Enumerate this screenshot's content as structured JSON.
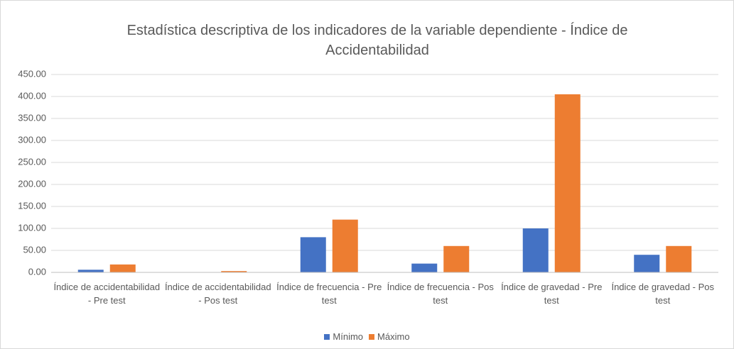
{
  "chart_data": {
    "type": "bar",
    "title": "Estadística descriptiva de los indicadores de la variable dependiente - Índice de Accidentabilidad",
    "categories": [
      "Índice de accidentabilidad - Pre test",
      "Índice de accidentabilidad - Pos test",
      "Índice de frecuencia - Pre test",
      "Índice de frecuencia - Pos test",
      "Índice de gravedad - Pre test",
      "Índice de gravedad - Pos test"
    ],
    "series": [
      {
        "name": "Mínimo",
        "color": "#4472c4",
        "values": [
          6,
          0.5,
          80,
          20,
          100,
          40
        ]
      },
      {
        "name": "Máximo",
        "color": "#ed7d31",
        "values": [
          18,
          3,
          120,
          60,
          405,
          60
        ]
      }
    ],
    "ylim": [
      0,
      450
    ],
    "yticks": [
      {
        "value": 0,
        "label": "0.00"
      },
      {
        "value": 50,
        "label": "50.00"
      },
      {
        "value": 100,
        "label": "100.00"
      },
      {
        "value": 150,
        "label": "150.00"
      },
      {
        "value": 200,
        "label": "200.00"
      },
      {
        "value": 250,
        "label": "250.00"
      },
      {
        "value": 300,
        "label": "300.00"
      },
      {
        "value": 350,
        "label": "350.00"
      },
      {
        "value": 400,
        "label": "400.00"
      },
      {
        "value": 450,
        "label": "450.00"
      }
    ],
    "grid": true,
    "legend": "bottom"
  }
}
